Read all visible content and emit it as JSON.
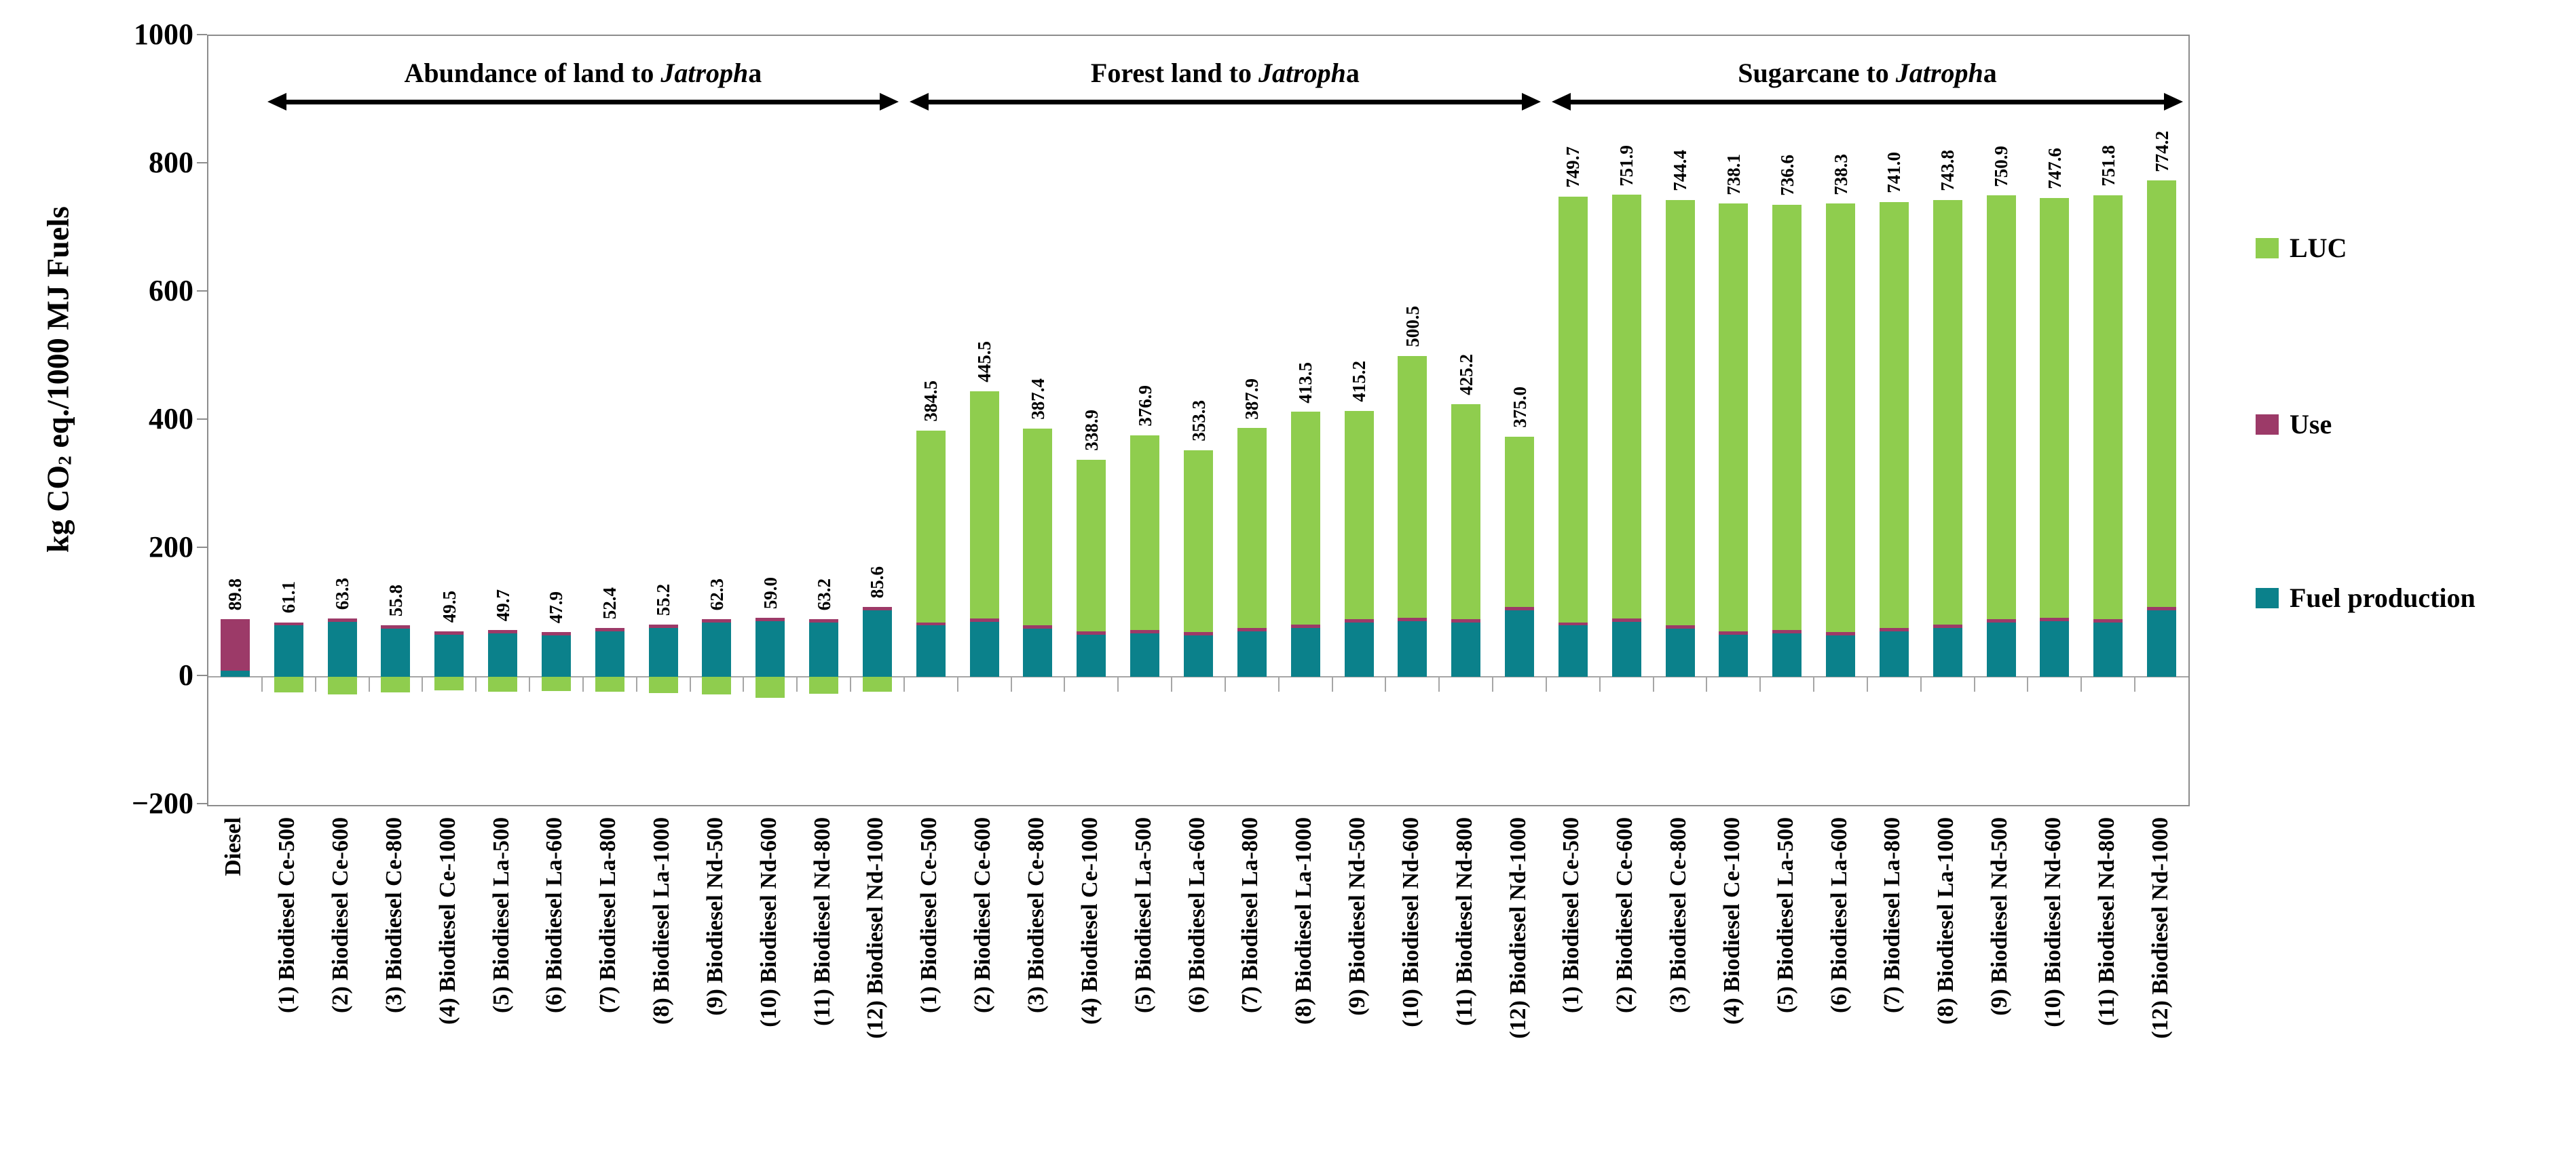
{
  "y_axis": {
    "title_parts": {
      "pre": "kg CO",
      "sub": "2",
      "post": " eq./1000 MJ Fuels"
    },
    "ticks": [
      {
        "label": "1000",
        "value": 1000
      },
      {
        "label": "800",
        "value": 800
      },
      {
        "label": "600",
        "value": 600
      },
      {
        "label": "400",
        "value": 400
      },
      {
        "label": "200",
        "value": 200
      },
      {
        "label": "0",
        "value": 0
      },
      {
        "label": "−200",
        "value": -200
      }
    ]
  },
  "legend": [
    {
      "label": "LUC",
      "color": "#8FCD4E"
    },
    {
      "label": "Use",
      "color": "#9C3A68"
    },
    {
      "label": "Fuel production",
      "color": "#0B818B"
    }
  ],
  "chart_data": {
    "type": "bar",
    "stacked": true,
    "ylim": [
      -200,
      1000
    ],
    "grid": false,
    "legend_position": "right",
    "categories": [
      "Diesel",
      "(1) Biodiesel Ce-500",
      "(2) Biodiesel Ce-600",
      "(3) Biodiesel Ce-800",
      "(4) Biodiesel Ce-1000",
      "(5) Biodiesel La-500",
      "(6) Biodiesel La-600",
      "(7) Biodiesel La-800",
      "(8) Biodiesel La-1000",
      "(9) Biodiesel Nd-500",
      "(10) Biodiesel Nd-600",
      "(11) Biodiesel Nd-800",
      "(12) Biodiesel Nd-1000",
      "(1) Biodiesel Ce-500",
      "(2) Biodiesel Ce-600",
      "(3) Biodiesel Ce-800",
      "(4) Biodiesel Ce-1000",
      "(5) Biodiesel La-500",
      "(6) Biodiesel La-600",
      "(7) Biodiesel La-800",
      "(8) Biodiesel La-1000",
      "(9) Biodiesel Nd-500",
      "(10) Biodiesel Nd-600",
      "(11) Biodiesel Nd-800",
      "(12) Biodiesel Nd-1000",
      "(1) Biodiesel Ce-500",
      "(2) Biodiesel Ce-600",
      "(3) Biodiesel Ce-800",
      "(4) Biodiesel Ce-1000",
      "(5) Biodiesel La-500",
      "(6) Biodiesel La-600",
      "(7) Biodiesel La-800",
      "(8) Biodiesel La-1000",
      "(9) Biodiesel Nd-500",
      "(10) Biodiesel Nd-600",
      "(11) Biodiesel Nd-800",
      "(12) Biodiesel Nd-1000"
    ],
    "series": [
      {
        "name": "Fuel production",
        "color": "#0B818B",
        "values": [
          9,
          80,
          86,
          75,
          66,
          68,
          65,
          71,
          76,
          85,
          87,
          85,
          104,
          80,
          86,
          75,
          66,
          68,
          65,
          71,
          76,
          85,
          87,
          85,
          104,
          80,
          86,
          75,
          66,
          68,
          65,
          71,
          76,
          85,
          87,
          85,
          104
        ]
      },
      {
        "name": "Use",
        "color": "#9C3A68",
        "values": [
          80.8,
          5,
          5,
          5,
          5,
          5,
          5,
          5,
          5,
          5,
          5,
          5,
          5,
          5,
          5,
          5,
          5,
          5,
          5,
          5,
          5,
          5,
          5,
          5,
          5,
          5,
          5,
          5,
          5,
          5,
          5,
          5,
          5,
          5,
          5,
          5,
          5
        ]
      },
      {
        "name": "LUC",
        "color": "#8FCD4E",
        "values": [
          0,
          -23.9,
          -27.7,
          -24.2,
          -21.5,
          -23.3,
          -22.1,
          -23.6,
          -25.8,
          -27.7,
          -33.0,
          -26.8,
          -23.4,
          299.5,
          354.5,
          307.4,
          267.9,
          303.9,
          283.3,
          311.9,
          332.5,
          325.2,
          408.5,
          335.2,
          266.0,
          664.7,
          660.9,
          664.4,
          667.1,
          663.6,
          668.3,
          665.0,
          662.8,
          660.9,
          655.6,
          661.8,
          665.2
        ]
      }
    ],
    "totals": [
      "89.8",
      "61.1",
      "63.3",
      "55.8",
      "49.5",
      "49.7",
      "47.9",
      "52.4",
      "55.2",
      "62.3",
      "59.0",
      "63.2",
      "85.6",
      "384.5",
      "445.5",
      "387.4",
      "338.9",
      "376.9",
      "353.3",
      "387.9",
      "413.5",
      "415.2",
      "500.5",
      "425.2",
      "375.0",
      "749.7",
      "751.9",
      "744.4",
      "738.1",
      "736.6",
      "738.3",
      "741.0",
      "743.8",
      "750.9",
      "747.6",
      "751.8",
      "774.2"
    ],
    "groups": [
      {
        "header_pre": "Abundance of land to ",
        "header_italic": "Jatroph",
        "header_post": "a",
        "start": 0,
        "count": 13,
        "excludes_first_category": true
      },
      {
        "header_pre": "Forest land to ",
        "header_italic": "Jatroph",
        "header_post": "a",
        "start": 13,
        "count": 12,
        "excludes_first_category": false
      },
      {
        "header_pre": "Sugarcane to ",
        "header_italic": "Jatroph",
        "header_post": "a",
        "start": 25,
        "count": 12,
        "excludes_first_category": false
      }
    ]
  }
}
